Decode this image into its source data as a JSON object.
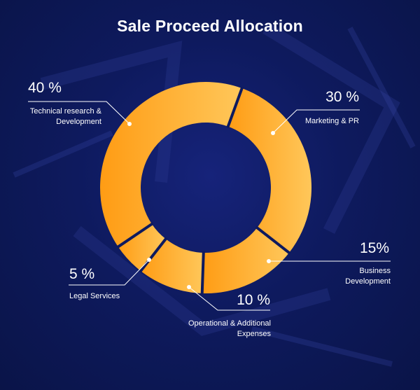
{
  "chart_data": {
    "type": "pie",
    "title": "Sale Proceed Allocation",
    "categories": [
      "Marketing & PR",
      "Business Development",
      "Operational & Additional Expenses",
      "Legal Services",
      "Technical research & Development"
    ],
    "values": [
      30,
      15,
      10,
      5,
      40
    ],
    "value_labels": [
      "30 %",
      "15%",
      "10 %",
      "5 %",
      "40 %"
    ],
    "label_lines": [
      [
        "Marketing & PR"
      ],
      [
        "Business",
        "Development"
      ],
      [
        "Operational & Additional",
        "Expenses"
      ],
      [
        "Legal Services"
      ],
      [
        "Technical research &",
        "Development"
      ]
    ],
    "donut": true,
    "colors": {
      "ring_start": "#ffc75a",
      "ring_end": "#ff9c14",
      "separator": "#0e1a5e",
      "leader": "#ffffff"
    }
  }
}
